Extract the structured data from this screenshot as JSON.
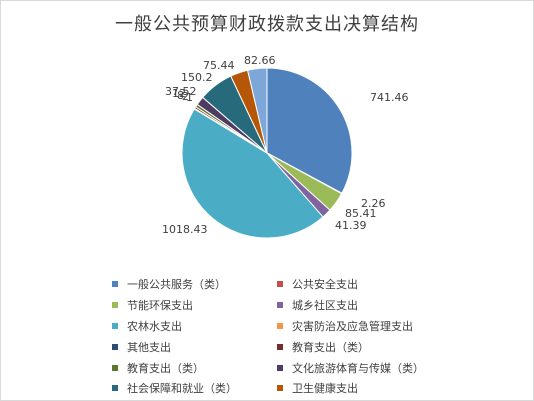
{
  "chart_data": {
    "type": "pie",
    "title": "一般公共预算财政拨款支出决算结构",
    "slices": [
      {
        "label": "一般公共服务（类）",
        "value": 741.46,
        "value_label": "741.46",
        "color": "#4f81bd"
      },
      {
        "label": "公共安全支出",
        "value": 2.26,
        "value_label": "2.26",
        "color": "#c0504d"
      },
      {
        "label": "节能环保支出",
        "value": 85.41,
        "value_label": "85.41",
        "color": "#9bbb59"
      },
      {
        "label": "城乡社区支出",
        "value": 41.39,
        "value_label": "41.39",
        "color": "#8064a2"
      },
      {
        "label": "农林水支出",
        "value": 1018.43,
        "value_label": "1018.43",
        "color": "#4bacc6"
      },
      {
        "label": "灾害防治及应急管理支出",
        "value": 1.0,
        "value_label": "1",
        "color": "#f79646"
      },
      {
        "label": "其他支出",
        "value": 2.0,
        "value_label": "2",
        "color": "#2c4d75"
      },
      {
        "label": "教育支出（类）",
        "value": 8.0,
        "value_label": "8",
        "color": "#772c2a"
      },
      {
        "label": "教育支出（类）",
        "value": 12.0,
        "value_label": "12",
        "color": "#5f7530"
      },
      {
        "label": "文化旅游体育与传媒（类）",
        "value": 37.52,
        "value_label": "37.52",
        "color": "#4d3b62"
      },
      {
        "label": "社会保障和就业（类）",
        "value": 150.2,
        "value_label": "150.2",
        "color": "#276a7c"
      },
      {
        "label": "卫生健康支出",
        "value": 75.44,
        "value_label": "75.44",
        "color": "#b65708"
      },
      {
        "label": "",
        "value": 82.66,
        "value_label": "82.66",
        "color": "#7da7d9"
      }
    ],
    "legend_position": "bottom"
  }
}
